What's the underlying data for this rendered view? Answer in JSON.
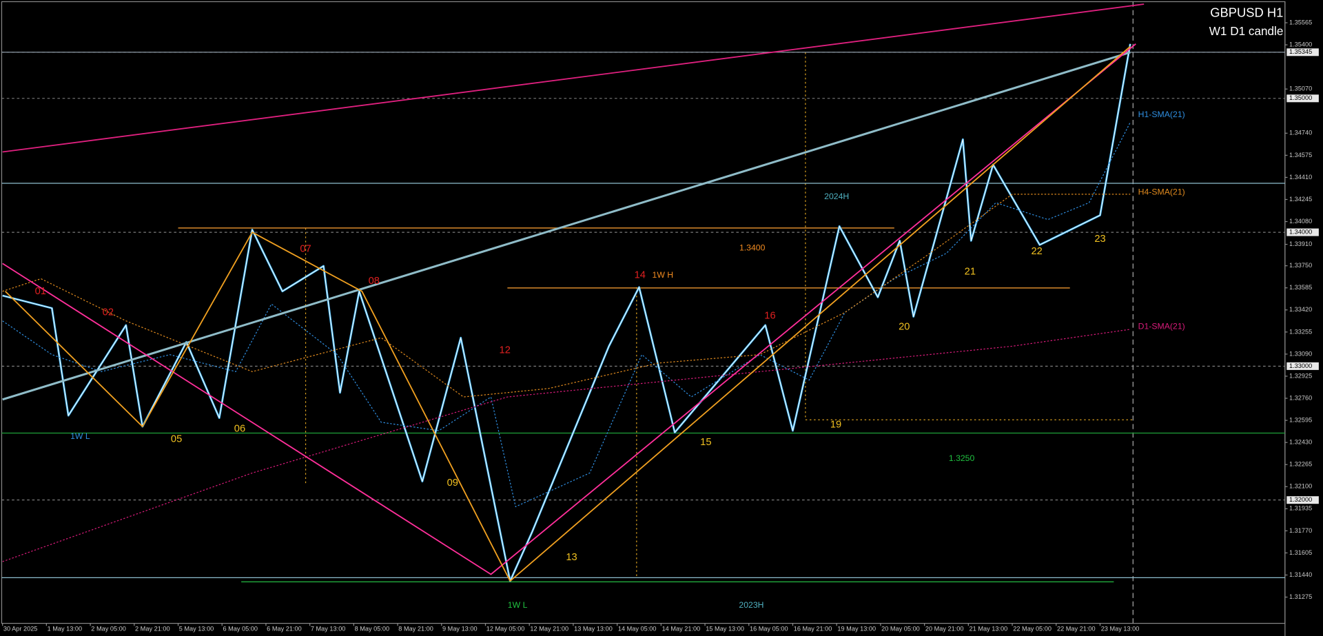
{
  "chart_data": {
    "type": "line",
    "title": "GBPUSD H1",
    "subtitle": "W1 D1 candle",
    "xlim": [
      -0.92,
      467.4
    ],
    "ylim": [
      1.31079,
      1.35735
    ],
    "xticks": [
      {
        "value": 0,
        "label": "30 Apr 2025"
      },
      {
        "value": 16,
        "label": "1 May 13:00"
      },
      {
        "value": 32,
        "label": "2 May 05:00"
      },
      {
        "value": 48,
        "label": "2 May 21:00"
      },
      {
        "value": 64,
        "label": "5 May 13:00"
      },
      {
        "value": 80,
        "label": "6 May 05:00"
      },
      {
        "value": 96,
        "label": "6 May 21:00"
      },
      {
        "value": 112,
        "label": "7 May 13:00"
      },
      {
        "value": 128,
        "label": "8 May 05:00"
      },
      {
        "value": 144,
        "label": "8 May 21:00"
      },
      {
        "value": 160,
        "label": "9 May 13:00"
      },
      {
        "value": 176,
        "label": "12 May 05:00"
      },
      {
        "value": 192,
        "label": "12 May 21:00"
      },
      {
        "value": 208,
        "label": "13 May 13:00"
      },
      {
        "value": 224,
        "label": "14 May 05:00"
      },
      {
        "value": 240,
        "label": "14 May 21:00"
      },
      {
        "value": 256,
        "label": "15 May 13:00"
      },
      {
        "value": 272,
        "label": "16 May 05:00"
      },
      {
        "value": 288,
        "label": "16 May 21:00"
      },
      {
        "value": 304,
        "label": "19 May 13:00"
      },
      {
        "value": 320,
        "label": "20 May 05:00"
      },
      {
        "value": 336,
        "label": "20 May 21:00"
      },
      {
        "value": 352,
        "label": "21 May 13:00"
      },
      {
        "value": 368,
        "label": "22 May 05:00"
      },
      {
        "value": 384,
        "label": "22 May 21:00"
      },
      {
        "value": 400,
        "label": "23 May 13:00"
      }
    ],
    "yticks": [
      {
        "value": 1.35565,
        "label": "1.35565"
      },
      {
        "value": 1.354,
        "label": "1.35400"
      },
      {
        "value": 1.3507,
        "label": "1.35070"
      },
      {
        "value": 1.3474,
        "label": "1.34740"
      },
      {
        "value": 1.34575,
        "label": "1.34575"
      },
      {
        "value": 1.3441,
        "label": "1.34410"
      },
      {
        "value": 1.34245,
        "label": "1.34245"
      },
      {
        "value": 1.3408,
        "label": "1.34080"
      },
      {
        "value": 1.3391,
        "label": "1.33910"
      },
      {
        "value": 1.3375,
        "label": "1.33750"
      },
      {
        "value": 1.33585,
        "label": "1.33585"
      },
      {
        "value": 1.3342,
        "label": "1.33420"
      },
      {
        "value": 1.33255,
        "label": "1.33255"
      },
      {
        "value": 1.3309,
        "label": "1.33090"
      },
      {
        "value": 1.32925,
        "label": "1.32925"
      },
      {
        "value": 1.3276,
        "label": "1.32760"
      },
      {
        "value": 1.32595,
        "label": "1.32595"
      },
      {
        "value": 1.3243,
        "label": "1.32430"
      },
      {
        "value": 1.32265,
        "label": "1.32265"
      },
      {
        "value": 1.321,
        "label": "1.32100"
      },
      {
        "value": 1.31935,
        "label": "1.31935"
      },
      {
        "value": 1.3177,
        "label": "1.31770"
      },
      {
        "value": 1.31605,
        "label": "1.31605"
      },
      {
        "value": 1.3144,
        "label": "1.31440"
      },
      {
        "value": 1.31275,
        "label": "1.31275"
      }
    ],
    "price_levels": [
      {
        "value": 1.35345,
        "label": "1.35345"
      },
      {
        "value": 1.35,
        "label": "1.35000"
      },
      {
        "value": 1.34,
        "label": "1.34000"
      },
      {
        "value": 1.33,
        "label": "1.33000"
      },
      {
        "value": 1.32,
        "label": "1.32000"
      }
    ],
    "horizontal_lines": [
      {
        "value": 1.35345,
        "color": "#8c9aa6"
      },
      {
        "value": 1.34366,
        "color": "#8fbfd0"
      },
      {
        "value": 1.325,
        "color": "#1fa33a"
      },
      {
        "value": 1.3142,
        "color": "#8fbfd0"
      }
    ],
    "segments": [
      {
        "from": 64,
        "to": 325,
        "value": 1.34032,
        "color": "#d98a2b"
      },
      {
        "from": 184,
        "to": 389,
        "value": 1.33584,
        "color": "#d98a2b"
      },
      {
        "from": 87,
        "to": 405,
        "value": 1.31389,
        "color": "#1fa33a"
      }
    ],
    "series": [
      {
        "color": "#3ab0f0",
        "style": "price",
        "x": [
          0,
          18,
          24,
          45,
          51,
          67,
          79,
          91,
          102,
          117,
          123,
          130,
          153,
          167,
          185,
          193,
          221,
          232,
          245,
          278,
          288,
          305,
          319,
          327,
          332,
          350,
          353,
          361,
          378,
          400,
          411
        ],
        "values": [
          1.33527,
          1.33433,
          1.32631,
          1.33306,
          1.32549,
          1.3318,
          1.32613,
          1.34019,
          1.33559,
          1.33748,
          1.32802,
          1.33559,
          1.32139,
          1.33212,
          1.31395,
          1.31761,
          1.33149,
          1.3359,
          1.32505,
          1.33306,
          1.32518,
          1.34045,
          1.33515,
          1.33937,
          1.3337,
          1.34694,
          1.33937,
          1.34505,
          1.33906,
          1.34127,
          1.35407
        ]
      },
      {
        "name": "H1-SMA(21)",
        "color": "#2f8ee0",
        "style": "dotted",
        "x": [
          0,
          18,
          36,
          61,
          85,
          98,
          122,
          138,
          159,
          178,
          187,
          214,
          233,
          251,
          276,
          294,
          307,
          325,
          344,
          362,
          381,
          396,
          411
        ],
        "values": [
          1.33338,
          1.33086,
          1.32959,
          1.33086,
          1.32959,
          1.33464,
          1.33086,
          1.32581,
          1.32518,
          1.3277,
          1.3195,
          1.32202,
          1.33086,
          1.3277,
          1.33086,
          1.32896,
          1.33401,
          1.33653,
          1.33843,
          1.34221,
          1.34095,
          1.34221,
          1.34821
        ]
      },
      {
        "name": "H4-SMA(21)",
        "color": "#e08a1e",
        "style": "dotted",
        "x": [
          0,
          14,
          45,
          91,
          138,
          168,
          199,
          239,
          276,
          307,
          338,
          368,
          411
        ],
        "values": [
          1.33559,
          1.33653,
          1.33338,
          1.32959,
          1.33212,
          1.3277,
          1.32833,
          1.33023,
          1.33086,
          1.33401,
          1.33843,
          1.34284,
          1.34284
        ]
      },
      {
        "name": "D1-SMA(21)",
        "color": "#d81b7a",
        "style": "dotted",
        "x": [
          0,
          91,
          184,
          276,
          368,
          411
        ],
        "values": [
          1.3154,
          1.32202,
          1.3277,
          1.32959,
          1.33149,
          1.33275
        ]
      },
      {
        "color": "#e0207f",
        "style": "solid",
        "x": [
          0,
          416
        ],
        "values": [
          1.346,
          1.35704
        ]
      },
      {
        "color": "#8fbcc8",
        "style": "thick",
        "x": [
          0,
          411
        ],
        "values": [
          1.32751,
          1.35344
        ]
      },
      {
        "color": "#ff2f9a",
        "style": "solid",
        "x": [
          0,
          178,
          413
        ],
        "values": [
          1.33767,
          1.31445,
          1.35407
        ]
      },
      {
        "color": "#f0a020",
        "style": "solid",
        "x": [
          1,
          51,
          91,
          131,
          185,
          411
        ],
        "values": [
          1.33559,
          1.32549,
          1.34,
          1.33559,
          1.31395,
          1.35388
        ]
      }
    ],
    "annotations": [
      {
        "text": "01",
        "color": "#e02020"
      },
      {
        "text": "02",
        "color": "#e02020"
      },
      {
        "text": "07",
        "color": "#e02020"
      },
      {
        "text": "08",
        "color": "#e02020"
      },
      {
        "text": "12",
        "color": "#e02020"
      },
      {
        "text": "14",
        "color": "#e02020"
      },
      {
        "text": "1W H",
        "color": "#f08a20"
      },
      {
        "text": "16",
        "color": "#e02020"
      },
      {
        "text": "05",
        "color": "#f0c020"
      },
      {
        "text": "06",
        "color": "#f0c020"
      },
      {
        "text": "09",
        "color": "#f0c020"
      },
      {
        "text": "13",
        "color": "#f0c020"
      },
      {
        "text": "15",
        "color": "#f0c020"
      },
      {
        "text": "19",
        "color": "#f0c020"
      },
      {
        "text": "20",
        "color": "#f0c020"
      },
      {
        "text": "21",
        "color": "#f0c020"
      },
      {
        "text": "22",
        "color": "#f0c020"
      },
      {
        "text": "23",
        "color": "#f0c020"
      },
      {
        "text": "1W L",
        "color": "#2f8ee0"
      },
      {
        "text": "1W L",
        "color": "#20c040"
      },
      {
        "text": "2023H",
        "color": "#4fb0c0"
      },
      {
        "text": "2024H",
        "color": "#4fb0c0"
      },
      {
        "text": "1.3400",
        "color": "#f08a20"
      },
      {
        "text": "1.3250",
        "color": "#20c040"
      }
    ]
  }
}
